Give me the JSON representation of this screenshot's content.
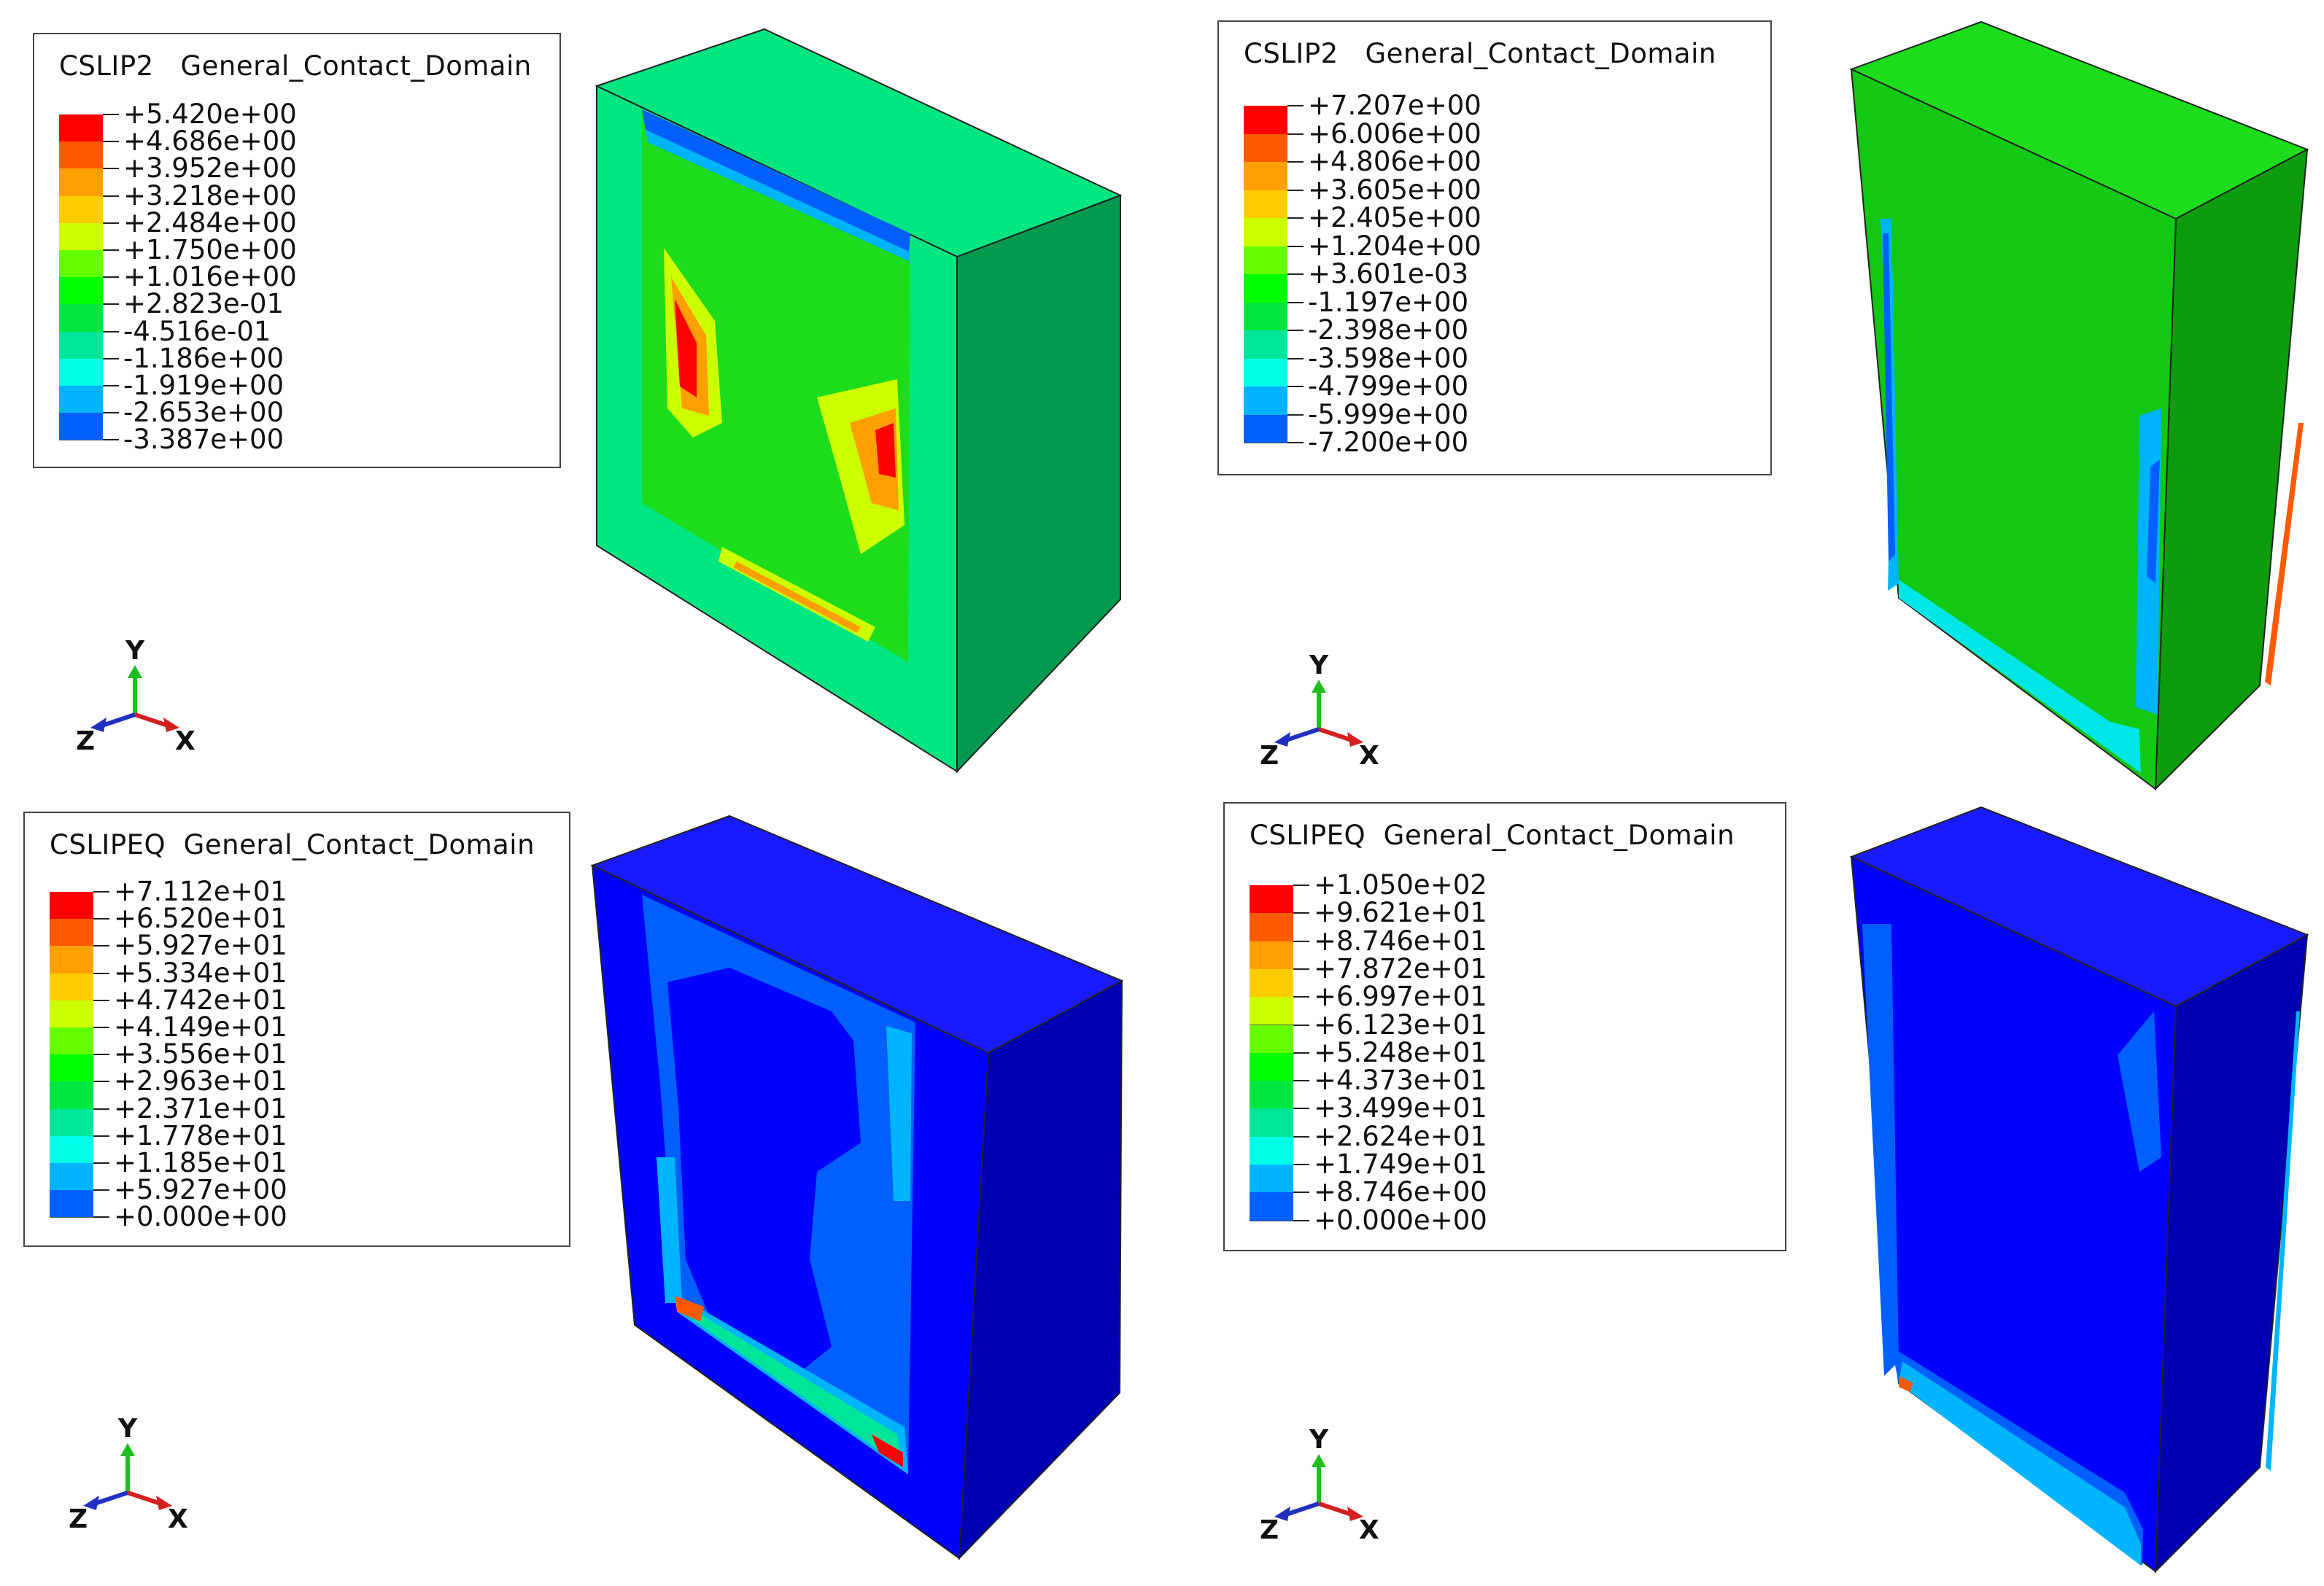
{
  "panels": [
    {
      "id": "cslip2-a",
      "legend_title": "CSLIP2   General_Contact_Domain",
      "values": [
        "+5.420e+00",
        "+4.686e+00",
        "+3.952e+00",
        "+3.218e+00",
        "+2.484e+00",
        "+1.750e+00",
        "+1.016e+00",
        "+2.823e-01",
        "-4.516e-01",
        "-1.186e+00",
        "-1.919e+00",
        "-2.653e+00",
        "-3.387e+00"
      ],
      "triad": {
        "y": "Y",
        "z": "Z",
        "x": "X"
      }
    },
    {
      "id": "cslip2-b",
      "legend_title": "CSLIP2   General_Contact_Domain",
      "values": [
        "+7.207e+00",
        "+6.006e+00",
        "+4.806e+00",
        "+3.605e+00",
        "+2.405e+00",
        "+1.204e+00",
        "+3.601e-03",
        "-1.197e+00",
        "-2.398e+00",
        "-3.598e+00",
        "-4.799e+00",
        "-5.999e+00",
        "-7.200e+00"
      ],
      "triad": {
        "y": "Y",
        "z": "Z",
        "x": "X"
      }
    },
    {
      "id": "cslipeq-a",
      "legend_title": "CSLIPEQ  General_Contact_Domain",
      "values": [
        "+7.112e+01",
        "+6.520e+01",
        "+5.927e+01",
        "+5.334e+01",
        "+4.742e+01",
        "+4.149e+01",
        "+3.556e+01",
        "+2.963e+01",
        "+2.371e+01",
        "+1.778e+01",
        "+1.185e+01",
        "+5.927e+00",
        "+0.000e+00"
      ],
      "triad": {
        "y": "Y",
        "z": "Z",
        "x": "X"
      }
    },
    {
      "id": "cslipeq-b",
      "legend_title": "CSLIPEQ  General_Contact_Domain",
      "values": [
        "+1.050e+02",
        "+9.621e+01",
        "+8.746e+01",
        "+7.872e+01",
        "+6.997e+01",
        "+6.123e+01",
        "+5.248e+01",
        "+4.373e+01",
        "+3.499e+01",
        "+2.624e+01",
        "+1.749e+01",
        "+8.746e+00",
        "+0.000e+00"
      ],
      "triad": {
        "y": "Y",
        "z": "Z",
        "x": "X"
      }
    }
  ],
  "colormap": [
    "#ff0000",
    "#ff5a00",
    "#ffa000",
    "#ffcc00",
    "#ccff00",
    "#66ff00",
    "#00ff00",
    "#00e640",
    "#00e699",
    "#00ffe6",
    "#00b4ff",
    "#0060ff",
    "#0000ff"
  ],
  "colors": {
    "ref_green": "#00e680",
    "ref_green_side": "#00994d",
    "slip_green": "#1cdc1c",
    "box_green": "#12c812",
    "box_green_side": "#0c9c0c",
    "blue_front": "#0000ff",
    "blue_top": "#1a1aff",
    "blue_side": "#0000b3",
    "mid_blue": "#0060ff",
    "light_blue": "#00b4ff",
    "cyan": "#00e6e6",
    "axis_y": "#1fbf1f",
    "axis_x": "#d32020",
    "axis_z": "#2030c0"
  }
}
